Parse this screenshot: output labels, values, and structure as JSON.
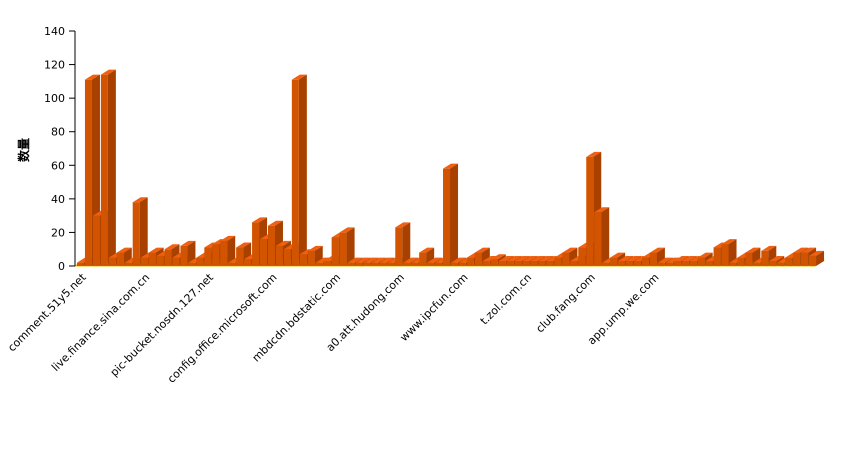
{
  "chart_data": {
    "type": "bar",
    "title": "",
    "xlabel": "",
    "ylabel": "数量",
    "ylim": [
      0,
      140
    ],
    "yticks": [
      0,
      20,
      40,
      60,
      80,
      100,
      120,
      140
    ],
    "grid": false,
    "legend": "none",
    "x_tick_labels": [
      "comment.51y5.net",
      "live.finance.sina.com.cn",
      "pic-bucket.nosdn.127.net",
      "config.office.microsoft.com",
      "mbdcdn.bdstatic.com",
      "a0.att.hudong.com",
      "www.ipcfun.com",
      "t.zol.com.cn",
      "club.fang.com",
      "app.ump.we.com"
    ],
    "x_tick_every": 8,
    "values": [
      2,
      111,
      30,
      114,
      5,
      8,
      2,
      38,
      5,
      8,
      6,
      10,
      5,
      12,
      2,
      5,
      11,
      13,
      15,
      2,
      11,
      4,
      26,
      16,
      24,
      12,
      10,
      111,
      7,
      9,
      2,
      3,
      17,
      20,
      2,
      2,
      2,
      2,
      2,
      2,
      23,
      2,
      2,
      8,
      2,
      2,
      58,
      2,
      2,
      5,
      8,
      3,
      4,
      3,
      3,
      3,
      3,
      3,
      3,
      3,
      5,
      8,
      3,
      11,
      65,
      32,
      2,
      5,
      3,
      3,
      3,
      5,
      8,
      2,
      2,
      3,
      3,
      3,
      5,
      3,
      11,
      13,
      2,
      5,
      8,
      2,
      9,
      3,
      2,
      5,
      8,
      8,
      6
    ]
  },
  "colors": {
    "bar_front": "#d35400",
    "bar_top": "#f06010",
    "bar_side": "#a84000",
    "floor_top": "#f5e600",
    "floor_front": "#f0c000",
    "axis": "#000000"
  }
}
